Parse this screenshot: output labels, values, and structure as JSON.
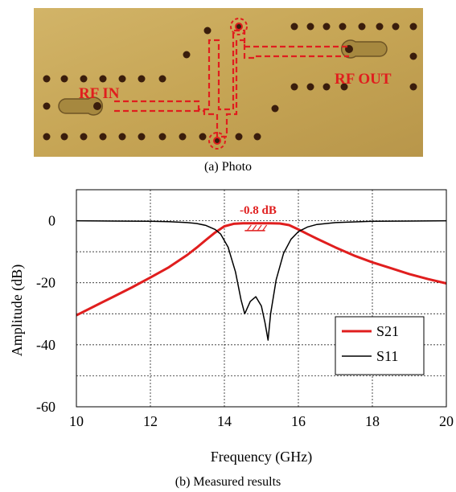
{
  "photo": {
    "label_in": "RF IN",
    "label_out": "RF OUT",
    "caption": "(a) Photo",
    "colors": {
      "board": "#c8a85a",
      "board_dark": "#a4853d",
      "via": "#3a1d0c",
      "trace": "#e01e1e"
    }
  },
  "caption_b": "(b) Measured results",
  "chart_data": {
    "type": "line",
    "xlabel": "Frequency (GHz)",
    "ylabel": "Amplitude (dB)",
    "xlim": [
      10,
      20
    ],
    "ylim": [
      -60,
      10
    ],
    "x_ticks": [
      "10",
      "12",
      "14",
      "16",
      "18",
      "20"
    ],
    "y_ticks": [
      "0",
      "-20",
      "-40",
      "-60"
    ],
    "grid": true,
    "legend_position": "bottom-right",
    "annotation": "-0.8 dB",
    "series": [
      {
        "name": "S21",
        "color": "#e01e1e",
        "x": [
          10,
          10.5,
          11,
          11.5,
          12,
          12.5,
          13,
          13.25,
          13.5,
          13.75,
          14,
          14.25,
          14.5,
          14.75,
          15,
          15.25,
          15.5,
          15.75,
          16,
          16.25,
          16.5,
          17,
          17.5,
          18,
          18.5,
          19,
          19.5,
          20
        ],
        "y": [
          -30.5,
          -27.5,
          -24.5,
          -21.5,
          -18.3,
          -15,
          -11,
          -8.7,
          -6.2,
          -3.8,
          -1.8,
          -1.0,
          -0.8,
          -0.8,
          -0.8,
          -0.8,
          -0.9,
          -1.4,
          -2.8,
          -4.3,
          -5.8,
          -8.6,
          -11.2,
          -13.4,
          -15.3,
          -17.2,
          -18.8,
          -20.2
        ]
      },
      {
        "name": "S11",
        "color": "#000000",
        "x": [
          10,
          11,
          12,
          12.5,
          13,
          13.25,
          13.5,
          13.75,
          13.9,
          14.1,
          14.3,
          14.45,
          14.55,
          14.7,
          14.85,
          15.0,
          15.1,
          15.18,
          15.25,
          15.4,
          15.6,
          15.8,
          16.0,
          16.25,
          16.5,
          17,
          18,
          19,
          20
        ],
        "y": [
          0,
          -0.1,
          -0.2,
          -0.3,
          -0.6,
          -0.9,
          -1.5,
          -2.8,
          -4.3,
          -8.5,
          -16.5,
          -25.5,
          -30,
          -26,
          -24.5,
          -27.5,
          -33,
          -38.5,
          -30,
          -19,
          -10.5,
          -6,
          -3.5,
          -2,
          -1.2,
          -0.6,
          -0.2,
          -0.1,
          0
        ]
      }
    ]
  }
}
